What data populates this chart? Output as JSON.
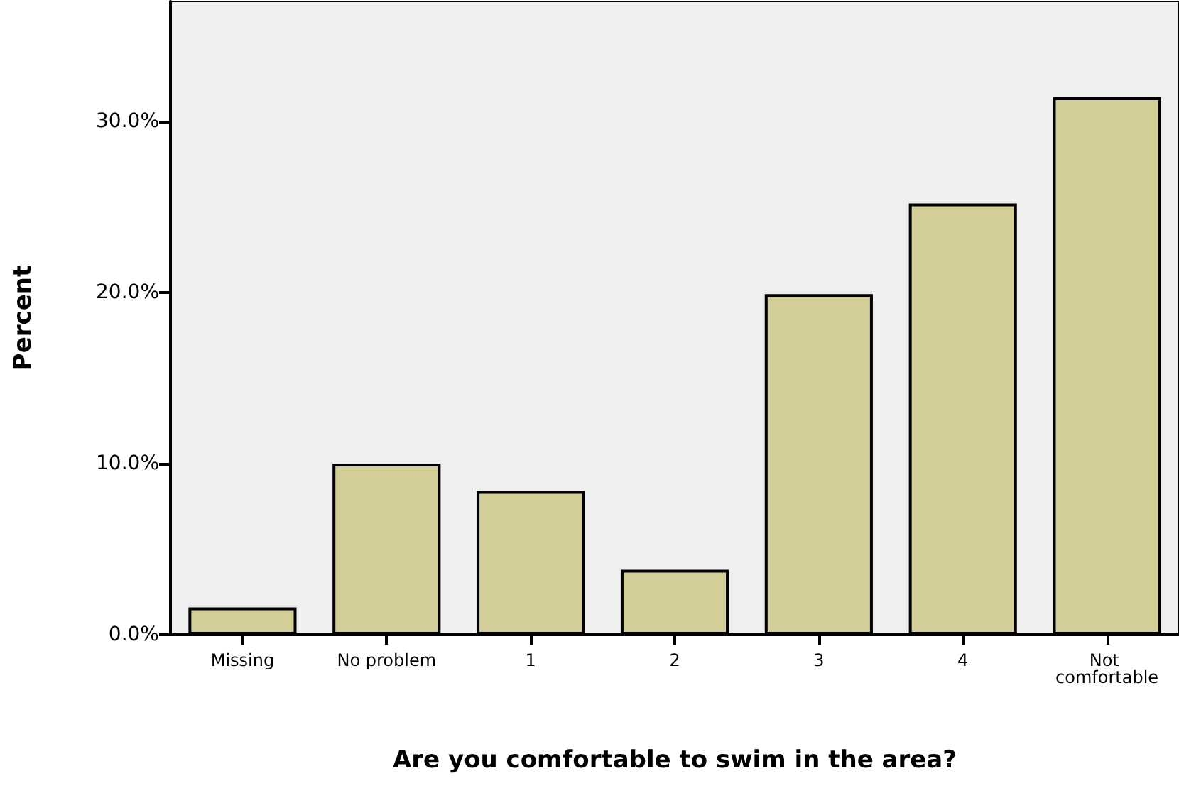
{
  "chart_data": {
    "type": "bar",
    "xlabel": "Are you comfortable to swim in the area?",
    "ylabel": "Percent",
    "categories": [
      "Missing",
      "No problem",
      "1",
      "2",
      "3",
      "4",
      "Not comfortable"
    ],
    "values": [
      1.6,
      10.0,
      8.4,
      3.8,
      19.9,
      25.2,
      31.4
    ],
    "color": "#d3ce97",
    "ylim": [
      0,
      37
    ],
    "yticks": [
      {
        "value": 0,
        "label": "0.0%"
      },
      {
        "value": 10,
        "label": "10.0%"
      },
      {
        "value": 20,
        "label": "20.0%"
      },
      {
        "value": 30,
        "label": "30.0%"
      }
    ],
    "grid": false
  }
}
